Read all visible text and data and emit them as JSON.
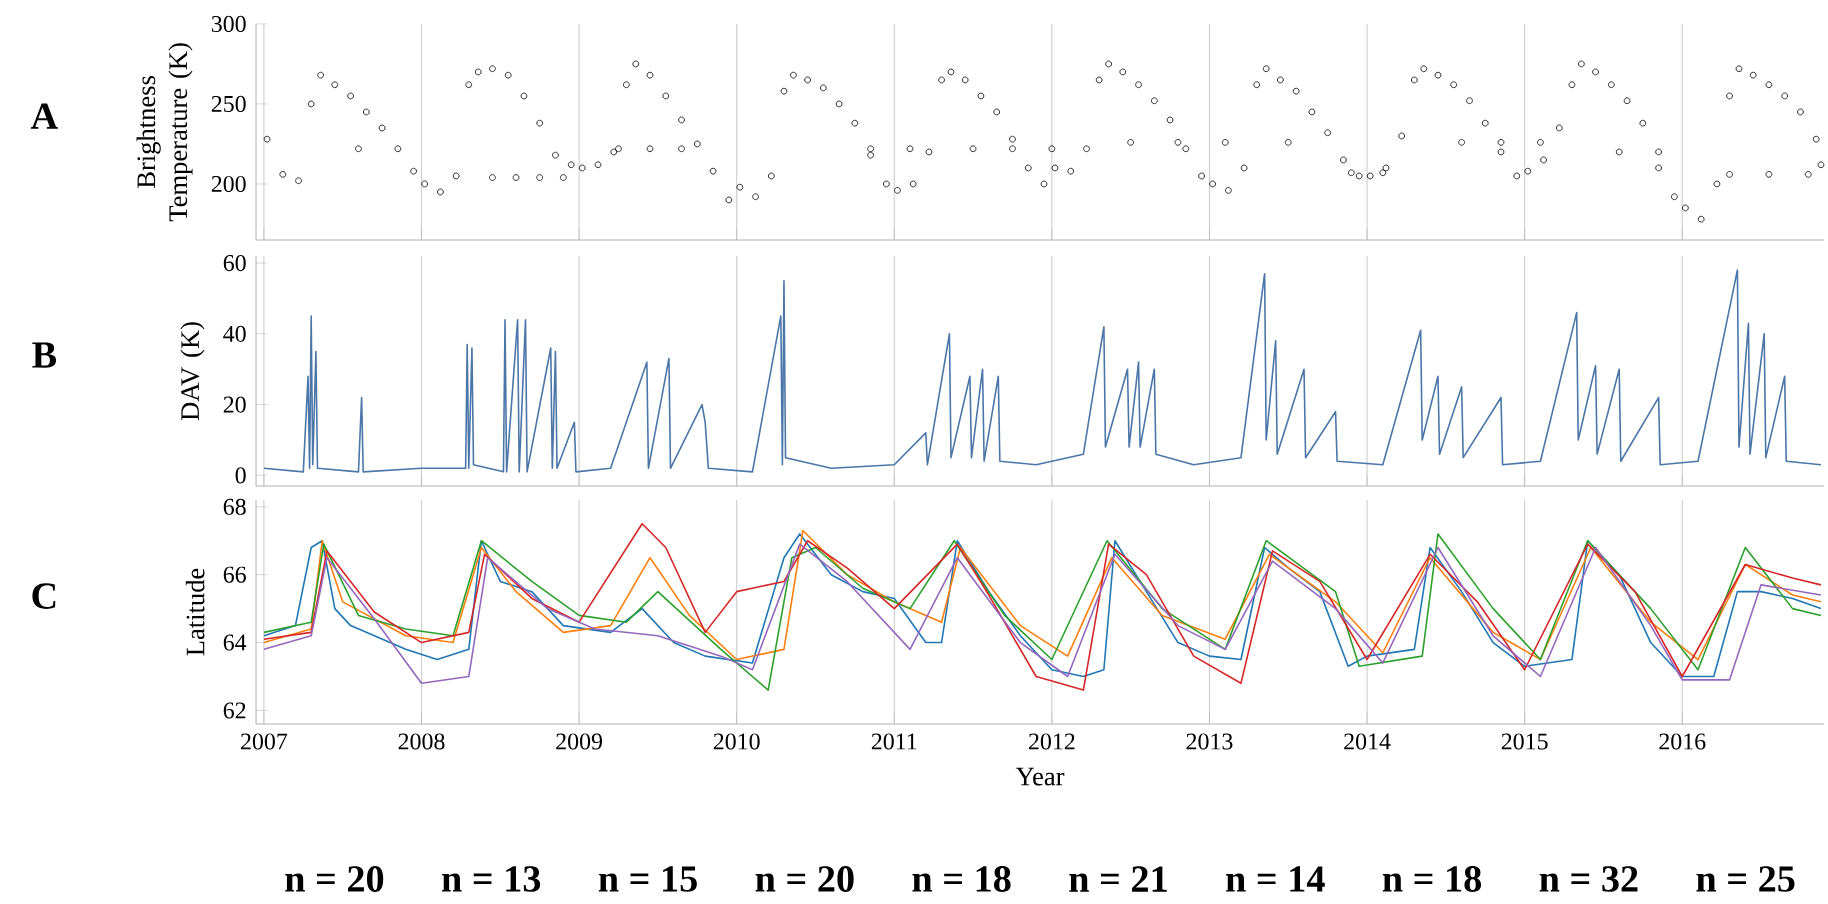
{
  "chart_data": [
    {
      "type": "scatter",
      "title": "A",
      "ylabel": "Brightness Temperature (K)",
      "marker": "circle",
      "grid": "x",
      "tick_labels": "y",
      "xlim": [
        2006.95,
        2016.9
      ],
      "xticks": [
        2007,
        2008,
        2009,
        2010,
        2011,
        2012,
        2013,
        2014,
        2015,
        2016
      ],
      "ylim": [
        165,
        300
      ],
      "yticks": [
        200,
        250,
        300
      ],
      "series": [
        {
          "color": "#000000",
          "x": [
            2007.02,
            2007.12,
            2007.22,
            2007.3,
            2007.36,
            2007.45,
            2007.55,
            2007.65,
            2007.75,
            2007.85,
            2007.95,
            2008.02,
            2008.12,
            2008.22,
            2008.3,
            2008.36,
            2008.45,
            2008.55,
            2008.65,
            2008.75,
            2008.85,
            2008.95,
            2009.02,
            2009.12,
            2009.22,
            2009.3,
            2009.36,
            2009.45,
            2009.55,
            2009.65,
            2009.75,
            2009.85,
            2009.95,
            2010.02,
            2010.12,
            2010.22,
            2010.3,
            2010.36,
            2010.45,
            2010.55,
            2010.65,
            2010.75,
            2010.85,
            2010.95,
            2011.02,
            2011.12,
            2011.22,
            2011.3,
            2011.36,
            2011.45,
            2011.55,
            2011.65,
            2011.75,
            2011.85,
            2011.95,
            2012.02,
            2012.12,
            2012.22,
            2012.3,
            2012.36,
            2012.45,
            2012.55,
            2012.65,
            2012.75,
            2012.85,
            2012.95,
            2013.02,
            2013.12,
            2013.22,
            2013.3,
            2013.36,
            2013.45,
            2013.55,
            2013.65,
            2013.75,
            2013.85,
            2013.95,
            2014.02,
            2014.12,
            2014.22,
            2014.3,
            2014.36,
            2014.45,
            2014.55,
            2014.65,
            2014.75,
            2014.85,
            2014.95,
            2015.02,
            2015.12,
            2015.22,
            2015.3,
            2015.36,
            2015.45,
            2015.55,
            2015.65,
            2015.75,
            2015.85,
            2015.95,
            2016.02,
            2016.12,
            2016.22,
            2016.3,
            2016.36,
            2016.45,
            2016.55,
            2016.65,
            2016.75,
            2016.85,
            2016.88,
            2007.6,
            2008.45,
            2008.6,
            2008.75,
            2008.9,
            2009.25,
            2009.45,
            2009.65,
            2010.85,
            2011.1,
            2011.5,
            2011.75,
            2012.0,
            2012.5,
            2012.8,
            2013.1,
            2013.5,
            2013.9,
            2014.1,
            2014.6,
            2014.85,
            2015.1,
            2015.6,
            2015.85,
            2016.3,
            2016.55,
            2016.8
          ],
          "values": [
            228,
            206,
            202,
            250,
            268,
            262,
            255,
            245,
            235,
            222,
            208,
            200,
            195,
            205,
            262,
            270,
            272,
            268,
            255,
            238,
            218,
            212,
            210,
            212,
            220,
            262,
            275,
            268,
            255,
            240,
            225,
            208,
            190,
            198,
            192,
            205,
            258,
            268,
            265,
            260,
            250,
            238,
            218,
            200,
            196,
            200,
            220,
            265,
            270,
            265,
            255,
            245,
            228,
            210,
            200,
            210,
            208,
            222,
            265,
            275,
            270,
            262,
            252,
            240,
            222,
            205,
            200,
            196,
            210,
            262,
            272,
            265,
            258,
            245,
            232,
            215,
            205,
            205,
            210,
            230,
            265,
            272,
            268,
            262,
            252,
            238,
            220,
            205,
            208,
            215,
            235,
            262,
            275,
            270,
            262,
            252,
            238,
            210,
            192,
            185,
            178,
            200,
            255,
            272,
            268,
            262,
            255,
            245,
            228,
            212,
            222,
            204,
            204,
            204,
            204,
            222,
            222,
            222,
            222,
            222,
            222,
            222,
            222,
            226,
            226,
            226,
            226,
            207,
            207,
            226,
            226,
            226,
            220,
            220,
            206,
            206,
            206
          ]
        }
      ]
    },
    {
      "type": "line",
      "title": "B",
      "ylabel": "DAV (K)",
      "grid": "x",
      "tick_labels": "y",
      "xlim": [
        2006.95,
        2016.9
      ],
      "xticks": [
        2007,
        2008,
        2009,
        2010,
        2011,
        2012,
        2013,
        2014,
        2015,
        2016
      ],
      "ylim": [
        -3,
        62
      ],
      "yticks": [
        0,
        20,
        40,
        60
      ],
      "series": [
        {
          "color": "#4a76a8",
          "x": [
            2007.0,
            2007.25,
            2007.28,
            2007.29,
            2007.3,
            2007.31,
            2007.33,
            2007.34,
            2007.6,
            2007.62,
            2007.63,
            2008.0,
            2008.28,
            2008.29,
            2008.3,
            2008.32,
            2008.33,
            2008.52,
            2008.53,
            2008.54,
            2008.61,
            2008.62,
            2008.66,
            2008.67,
            2008.82,
            2008.83,
            2008.85,
            2008.86,
            2008.97,
            2008.98,
            2009.2,
            2009.43,
            2009.44,
            2009.57,
            2009.58,
            2009.78,
            2009.8,
            2009.82,
            2010.1,
            2010.28,
            2010.29,
            2010.3,
            2010.31,
            2010.6,
            2011.0,
            2011.2,
            2011.21,
            2011.35,
            2011.36,
            2011.48,
            2011.49,
            2011.56,
            2011.57,
            2011.66,
            2011.67,
            2011.9,
            2012.2,
            2012.33,
            2012.34,
            2012.48,
            2012.49,
            2012.55,
            2012.56,
            2012.65,
            2012.66,
            2012.9,
            2013.2,
            2013.35,
            2013.36,
            2013.42,
            2013.43,
            2013.6,
            2013.61,
            2013.8,
            2013.81,
            2014.1,
            2014.34,
            2014.35,
            2014.45,
            2014.46,
            2014.6,
            2014.61,
            2014.85,
            2014.86,
            2015.1,
            2015.33,
            2015.34,
            2015.45,
            2015.46,
            2015.6,
            2015.61,
            2015.85,
            2015.86,
            2016.1,
            2016.35,
            2016.36,
            2016.42,
            2016.43,
            2016.52,
            2016.53,
            2016.65,
            2016.66,
            2016.88
          ],
          "values": [
            2,
            1,
            28,
            2,
            45,
            3,
            35,
            2,
            1,
            22,
            1,
            2,
            2,
            37,
            2,
            36,
            3,
            1,
            44,
            1,
            44,
            1,
            44,
            1,
            36,
            2,
            35,
            2,
            15,
            1,
            2,
            32,
            2,
            33,
            2,
            20,
            15,
            2,
            1,
            45,
            3,
            55,
            5,
            2,
            3,
            12,
            3,
            40,
            5,
            28,
            5,
            30,
            4,
            28,
            4,
            3,
            6,
            42,
            8,
            30,
            8,
            32,
            8,
            30,
            6,
            3,
            5,
            57,
            10,
            38,
            6,
            30,
            5,
            18,
            4,
            3,
            41,
            10,
            28,
            6,
            25,
            5,
            22,
            3,
            4,
            46,
            10,
            31,
            6,
            30,
            4,
            22,
            3,
            4,
            58,
            8,
            43,
            6,
            40,
            5,
            28,
            4,
            3
          ]
        }
      ]
    },
    {
      "type": "line",
      "title": "C",
      "ylabel": "Latitude",
      "xlabel": "Year",
      "grid": "x",
      "xlim": [
        2006.95,
        2016.9
      ],
      "xticks": [
        2007,
        2008,
        2009,
        2010,
        2011,
        2012,
        2013,
        2014,
        2015,
        2016
      ],
      "ylim": [
        61.6,
        68.2
      ],
      "yticks": [
        62,
        64,
        66,
        68
      ],
      "annotations": [
        "n = 20",
        "n = 13",
        "n = 15",
        "n = 20",
        "n = 18",
        "n = 21",
        "n = 14",
        "n = 18",
        "n = 32",
        "n = 25"
      ],
      "series": [
        {
          "color": "#1f77b4",
          "x": [
            2007.0,
            2007.2,
            2007.3,
            2007.37,
            2007.45,
            2007.55,
            2007.9,
            2008.1,
            2008.3,
            2008.38,
            2008.5,
            2008.7,
            2008.9,
            2009.2,
            2009.4,
            2009.6,
            2009.8,
            2010.1,
            2010.3,
            2010.4,
            2010.6,
            2010.8,
            2011.0,
            2011.2,
            2011.3,
            2011.4,
            2011.6,
            2011.8,
            2012.0,
            2012.2,
            2012.33,
            2012.4,
            2012.6,
            2012.8,
            2013.0,
            2013.2,
            2013.35,
            2013.5,
            2013.7,
            2013.88,
            2014.0,
            2014.3,
            2014.4,
            2014.6,
            2014.8,
            2015.0,
            2015.3,
            2015.4,
            2015.6,
            2015.8,
            2016.0,
            2016.2,
            2016.35,
            2016.5,
            2016.7,
            2016.88
          ],
          "values": [
            64.2,
            64.5,
            66.8,
            67.0,
            65.0,
            64.5,
            63.8,
            63.5,
            63.8,
            67.0,
            65.8,
            65.5,
            64.5,
            64.3,
            65.0,
            64.0,
            63.6,
            63.4,
            66.5,
            67.2,
            66.0,
            65.5,
            65.3,
            64.0,
            64.0,
            67.0,
            65.5,
            64.2,
            63.2,
            63.0,
            63.2,
            67.0,
            65.5,
            64.0,
            63.6,
            63.5,
            66.8,
            66.2,
            65.5,
            63.3,
            63.6,
            63.8,
            66.8,
            65.5,
            64.0,
            63.3,
            63.5,
            67.0,
            66.0,
            64.0,
            63.0,
            63.0,
            65.5,
            65.5,
            65.3,
            65.0
          ]
        },
        {
          "color": "#ff7f0e",
          "x": [
            2007.0,
            2007.3,
            2007.37,
            2007.5,
            2007.9,
            2008.2,
            2008.38,
            2008.6,
            2008.9,
            2009.2,
            2009.45,
            2009.7,
            2010.0,
            2010.3,
            2010.42,
            2010.7,
            2011.0,
            2011.3,
            2011.42,
            2011.8,
            2012.1,
            2012.38,
            2012.7,
            2013.1,
            2013.38,
            2013.8,
            2014.1,
            2014.4,
            2014.8,
            2015.1,
            2015.42,
            2015.8,
            2016.1,
            2016.4,
            2016.7,
            2016.88
          ],
          "values": [
            64.0,
            64.4,
            67.0,
            65.2,
            64.2,
            64.0,
            66.8,
            65.5,
            64.3,
            64.5,
            66.5,
            64.8,
            63.5,
            63.8,
            67.3,
            66.0,
            65.2,
            64.6,
            66.8,
            64.5,
            63.6,
            66.5,
            64.8,
            64.1,
            66.6,
            65.2,
            63.7,
            66.5,
            64.3,
            63.5,
            66.8,
            64.6,
            63.5,
            66.3,
            65.4,
            65.2
          ]
        },
        {
          "color": "#2ca02c",
          "x": [
            2007.0,
            2007.3,
            2007.38,
            2007.6,
            2007.9,
            2008.2,
            2008.38,
            2008.7,
            2009.0,
            2009.3,
            2009.5,
            2009.9,
            2010.2,
            2010.35,
            2010.5,
            2010.8,
            2011.1,
            2011.38,
            2011.7,
            2012.0,
            2012.35,
            2012.7,
            2013.1,
            2013.36,
            2013.8,
            2013.95,
            2014.35,
            2014.45,
            2014.8,
            2015.1,
            2015.4,
            2015.8,
            2016.1,
            2016.4,
            2016.7,
            2016.88
          ],
          "values": [
            64.3,
            64.6,
            66.9,
            64.8,
            64.4,
            64.2,
            67.0,
            65.8,
            64.8,
            64.6,
            65.5,
            63.8,
            62.6,
            66.5,
            66.8,
            65.6,
            65.0,
            67.0,
            64.8,
            63.5,
            67.0,
            65.0,
            63.8,
            67.0,
            65.5,
            63.3,
            63.6,
            67.2,
            65.0,
            63.5,
            67.0,
            65.0,
            63.2,
            66.8,
            65.0,
            64.8
          ]
        },
        {
          "color": "#d62728",
          "x": [
            2007.0,
            2007.3,
            2007.4,
            2007.7,
            2008.0,
            2008.3,
            2008.4,
            2008.7,
            2009.0,
            2009.4,
            2009.55,
            2009.8,
            2010.0,
            2010.3,
            2010.45,
            2010.7,
            2011.0,
            2011.4,
            2011.6,
            2011.9,
            2012.2,
            2012.36,
            2012.6,
            2012.9,
            2013.2,
            2013.4,
            2013.7,
            2014.0,
            2014.4,
            2014.7,
            2015.0,
            2015.4,
            2015.7,
            2016.0,
            2016.4,
            2016.7,
            2016.88
          ],
          "values": [
            64.1,
            64.3,
            66.7,
            64.9,
            64.0,
            64.3,
            66.6,
            65.3,
            64.6,
            67.5,
            66.8,
            64.3,
            65.5,
            65.8,
            67.0,
            66.2,
            65.0,
            66.9,
            65.4,
            63.0,
            62.6,
            66.9,
            66.0,
            63.6,
            62.8,
            66.7,
            65.8,
            63.5,
            66.6,
            65.2,
            63.2,
            66.9,
            65.5,
            63.0,
            66.3,
            65.9,
            65.7
          ]
        },
        {
          "color": "#9467bd",
          "x": [
            2007.0,
            2007.3,
            2007.4,
            2007.7,
            2008.0,
            2008.3,
            2008.42,
            2008.8,
            2009.1,
            2009.5,
            2009.9,
            2010.1,
            2010.4,
            2010.7,
            2011.1,
            2011.4,
            2011.8,
            2012.1,
            2012.4,
            2012.8,
            2013.1,
            2013.4,
            2013.8,
            2014.1,
            2014.45,
            2014.8,
            2015.1,
            2015.45,
            2015.8,
            2016.0,
            2016.3,
            2016.5,
            2016.88
          ],
          "values": [
            63.8,
            64.2,
            66.5,
            64.7,
            62.8,
            63.0,
            66.5,
            65.0,
            64.4,
            64.2,
            63.6,
            63.2,
            66.9,
            65.8,
            63.8,
            66.5,
            64.0,
            63.0,
            66.6,
            64.5,
            63.8,
            66.4,
            65.0,
            63.4,
            66.8,
            64.2,
            63.0,
            66.8,
            64.5,
            62.9,
            62.9,
            65.7,
            65.4
          ]
        }
      ]
    }
  ]
}
